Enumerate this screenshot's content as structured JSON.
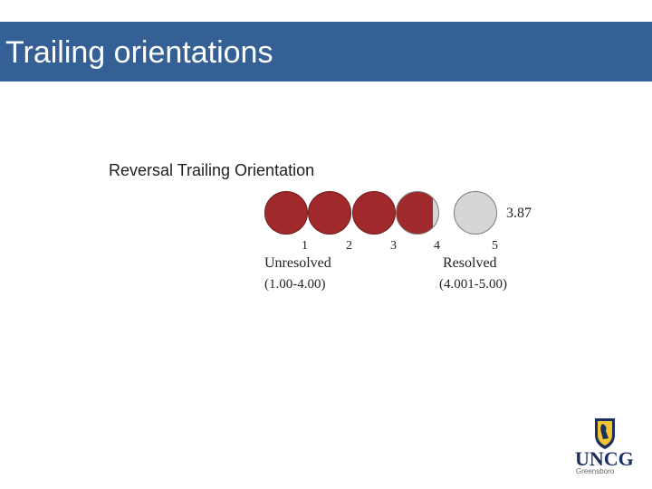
{
  "slide": {
    "title": "Trailing orientations"
  },
  "figure": {
    "heading": "Reversal Trailing Orientation",
    "score": "3.87",
    "scale_numbers": [
      "1",
      "2",
      "3",
      "4",
      "5"
    ],
    "left_category": {
      "label": "Unresolved",
      "range": "(1.00-4.00)"
    },
    "right_category": {
      "label": "Resolved",
      "range": "(4.001-5.00)"
    },
    "fill_level": 3.87,
    "colors": {
      "filled": "#a0292b",
      "empty": "#d6d6d6",
      "title_bar": "#356096"
    }
  },
  "logo": {
    "wordmark": "UNCG",
    "subtitle": "Greensboro"
  }
}
